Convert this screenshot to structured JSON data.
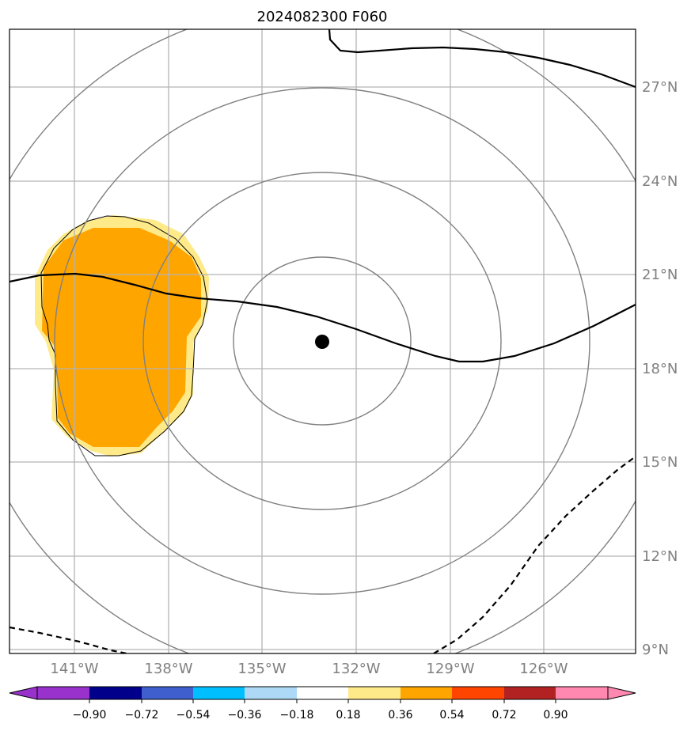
{
  "title": "2024082300 F060",
  "map": {
    "lon_labels": [
      "141°W",
      "138°W",
      "135°W",
      "132°W",
      "129°W",
      "126°W"
    ],
    "lat_labels": [
      "27°N",
      "24°N",
      "21°N",
      "18°N",
      "15°N",
      "12°N",
      "9°N"
    ],
    "center_marker": {
      "lon": -133.0,
      "lat": 18.9
    },
    "range_rings": 4,
    "colors": {
      "gridline": "#b4b4b4",
      "ring": "#808080",
      "contour": "#000000",
      "fill_light": "#ffea8a",
      "fill_orange": "#ffa500"
    }
  },
  "colorbar": {
    "ticks": [
      "−0.90",
      "−0.72",
      "−0.54",
      "−0.36",
      "−0.18",
      "0.18",
      "0.36",
      "0.54",
      "0.72",
      "0.90"
    ],
    "colors": [
      "#9932cc",
      "#00008b",
      "#3f5fcf",
      "#00bfff",
      "#add8f6",
      "#ffffff",
      "#ffea8a",
      "#ffa500",
      "#ff4500",
      "#b22222",
      "#ff88b0"
    ]
  }
}
